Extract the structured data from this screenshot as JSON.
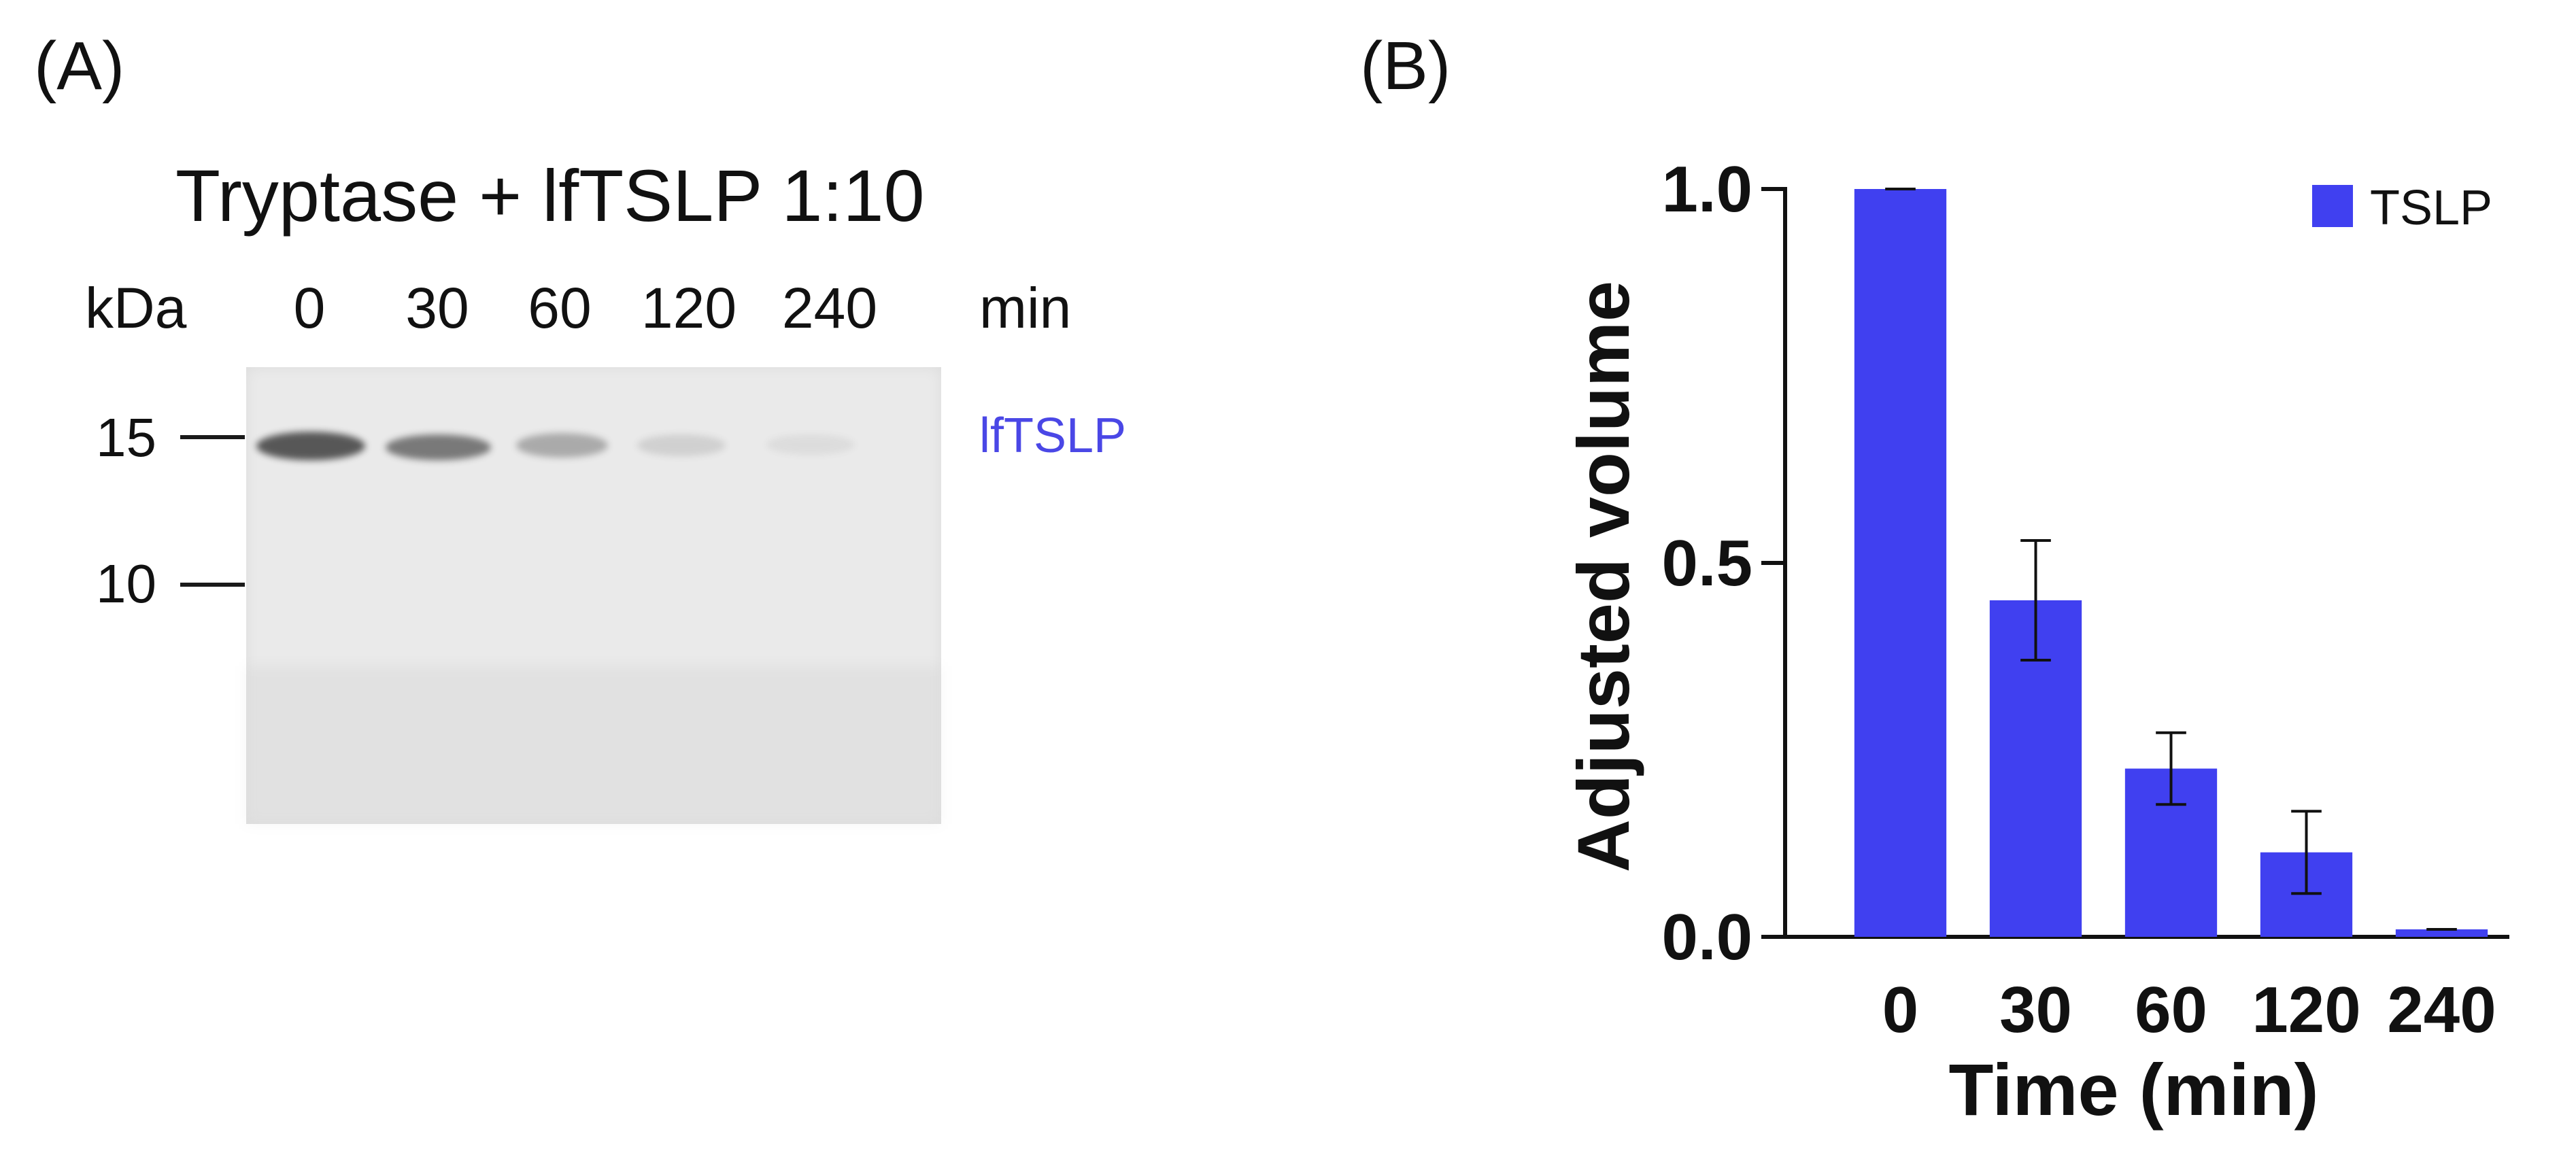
{
  "panel_a": {
    "label": "(A)",
    "title": "Tryptase + lfTSLP 1:10",
    "unit_label": "kDa",
    "lanes": [
      {
        "label": "0",
        "band_intensity": 0.95
      },
      {
        "label": "30",
        "band_intensity": 0.72
      },
      {
        "label": "60",
        "band_intensity": 0.38
      },
      {
        "label": "120",
        "band_intensity": 0.12
      },
      {
        "label": "240",
        "band_intensity": 0.04
      }
    ],
    "time_unit": "min",
    "markers": [
      {
        "label": "15"
      },
      {
        "label": "10"
      }
    ],
    "band_name": "lfTSLP",
    "colors": {
      "gel_background": "#eaeaea",
      "band": "#333333",
      "band_name": "#4a47e6"
    }
  },
  "panel_b": {
    "label": "(B)",
    "chart_data": {
      "type": "bar",
      "categories": [
        "0",
        "30",
        "60",
        "120",
        "240"
      ],
      "series": [
        {
          "name": "TSLP",
          "values": [
            1.0,
            0.45,
            0.225,
            0.113,
            0.01
          ],
          "errors": [
            0.0,
            0.08,
            0.048,
            0.055,
            0.0
          ]
        }
      ],
      "xlabel": "Time (min)",
      "ylabel": "Adjusted volume",
      "ylim": [
        0,
        1.0
      ],
      "yticks": [
        "0.0",
        "0.5",
        "1.0"
      ],
      "grid": false,
      "legend_position": "top-right",
      "bar_color": "#4040f0"
    }
  }
}
